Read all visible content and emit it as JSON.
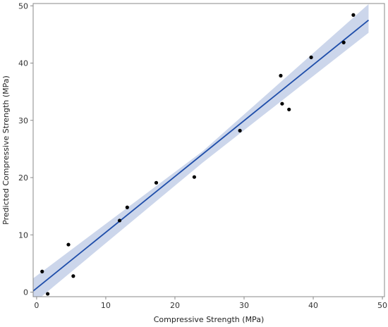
{
  "chart_data": {
    "type": "scatter",
    "title": "",
    "xlabel": "Compressive Strength (MPa)",
    "ylabel": "Predicted Compressive Strength (MPa)",
    "xlim": [
      -0.5,
      50.3
    ],
    "ylim": [
      -0.8,
      50.4
    ],
    "xticks": [
      0,
      10,
      20,
      30,
      40,
      50
    ],
    "yticks": [
      0,
      10,
      20,
      30,
      40,
      50
    ],
    "grid": false,
    "points": [
      {
        "x": 0.8,
        "y": 3.6
      },
      {
        "x": 1.6,
        "y": -0.3
      },
      {
        "x": 4.6,
        "y": 8.3
      },
      {
        "x": 5.3,
        "y": 2.8
      },
      {
        "x": 12.0,
        "y": 12.5
      },
      {
        "x": 13.1,
        "y": 14.8
      },
      {
        "x": 17.3,
        "y": 19.1
      },
      {
        "x": 22.8,
        "y": 20.1
      },
      {
        "x": 29.4,
        "y": 28.2
      },
      {
        "x": 35.3,
        "y": 37.8
      },
      {
        "x": 35.5,
        "y": 32.9
      },
      {
        "x": 36.5,
        "y": 31.9
      },
      {
        "x": 39.7,
        "y": 41.0
      },
      {
        "x": 44.4,
        "y": 43.6
      },
      {
        "x": 45.8,
        "y": 48.4
      }
    ],
    "fit_line": {
      "x": [
        -0.5,
        48.0
      ],
      "y": [
        0.2,
        47.5
      ]
    },
    "confidence_band": {
      "x": [
        -0.5,
        24.0,
        48.0
      ],
      "lower": [
        -2.0,
        22.6,
        45.3
      ],
      "upper": [
        2.4,
        24.6,
        50.3
      ]
    },
    "colors": {
      "points": "#000000",
      "fit_line": "#1f4eaa",
      "band": "#c9d4ea",
      "axis": "#888888"
    }
  }
}
